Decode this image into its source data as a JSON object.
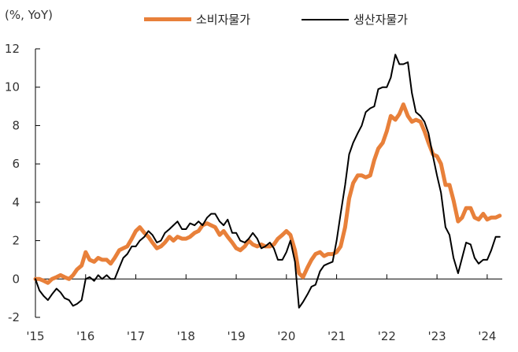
{
  "chart_data": {
    "type": "line",
    "unit_label": "(%, YoY)",
    "ylim": [
      -2,
      12
    ],
    "yticks": [
      -2,
      0,
      2,
      4,
      6,
      8,
      10,
      12
    ],
    "xlim": [
      2015.0,
      2024.3
    ],
    "xtick_labels": [
      "'15",
      "'16",
      "'17",
      "'18",
      "'19",
      "'20",
      "'21",
      "'22",
      "'23",
      "'24"
    ],
    "grid": false,
    "legend_position": "top-center",
    "series": [
      {
        "name": "소비자물가",
        "color": "#E8803A",
        "x": [
          2015.0,
          2015.08,
          2015.17,
          2015.25,
          2015.33,
          2015.42,
          2015.5,
          2015.58,
          2015.67,
          2015.75,
          2015.83,
          2015.92,
          2016.0,
          2016.08,
          2016.17,
          2016.25,
          2016.33,
          2016.42,
          2016.5,
          2016.58,
          2016.67,
          2016.75,
          2016.83,
          2016.92,
          2017.0,
          2017.08,
          2017.17,
          2017.25,
          2017.33,
          2017.42,
          2017.5,
          2017.58,
          2017.67,
          2017.75,
          2017.83,
          2017.92,
          2018.0,
          2018.08,
          2018.17,
          2018.25,
          2018.33,
          2018.42,
          2018.5,
          2018.58,
          2018.67,
          2018.75,
          2018.83,
          2018.92,
          2019.0,
          2019.08,
          2019.17,
          2019.25,
          2019.33,
          2019.42,
          2019.5,
          2019.58,
          2019.67,
          2019.75,
          2019.83,
          2019.92,
          2020.0,
          2020.08,
          2020.17,
          2020.25,
          2020.33,
          2020.42,
          2020.5,
          2020.58,
          2020.67,
          2020.75,
          2020.83,
          2020.92,
          2021.0,
          2021.08,
          2021.17,
          2021.25,
          2021.33,
          2021.42,
          2021.5,
          2021.58,
          2021.67,
          2021.75,
          2021.83,
          2021.92,
          2022.0,
          2022.08,
          2022.17,
          2022.25,
          2022.33,
          2022.42,
          2022.5,
          2022.58,
          2022.67,
          2022.75,
          2022.83,
          2022.92,
          2023.0,
          2023.08,
          2023.17,
          2023.25,
          2023.33,
          2023.42,
          2023.5,
          2023.58,
          2023.67,
          2023.75,
          2023.83,
          2023.92,
          2024.0,
          2024.08,
          2024.17,
          2024.25
        ],
        "values": [
          0.0,
          0.0,
          -0.1,
          -0.2,
          0.0,
          0.1,
          0.2,
          0.1,
          0.0,
          0.2,
          0.5,
          0.7,
          1.4,
          1.0,
          0.9,
          1.1,
          1.0,
          1.0,
          0.8,
          1.1,
          1.5,
          1.6,
          1.7,
          2.1,
          2.5,
          2.7,
          2.4,
          2.2,
          1.9,
          1.6,
          1.7,
          1.9,
          2.2,
          2.0,
          2.2,
          2.1,
          2.1,
          2.2,
          2.4,
          2.5,
          2.8,
          2.9,
          2.8,
          2.7,
          2.3,
          2.5,
          2.2,
          1.9,
          1.6,
          1.5,
          1.7,
          2.0,
          1.8,
          1.7,
          1.8,
          1.7,
          1.7,
          1.8,
          2.1,
          2.3,
          2.5,
          2.3,
          1.5,
          0.3,
          0.1,
          0.6,
          1.0,
          1.3,
          1.4,
          1.2,
          1.3,
          1.3,
          1.4,
          1.7,
          2.7,
          4.2,
          5.0,
          5.4,
          5.4,
          5.3,
          5.4,
          6.2,
          6.8,
          7.1,
          7.7,
          8.5,
          8.3,
          8.6,
          9.1,
          8.5,
          8.2,
          8.3,
          8.2,
          7.7,
          7.1,
          6.5,
          6.4,
          6.0,
          4.9,
          4.9,
          4.1,
          3.0,
          3.2,
          3.7,
          3.7,
          3.2,
          3.1,
          3.4,
          3.1,
          3.2,
          3.2,
          3.3
        ]
      },
      {
        "name": "생산자물가",
        "color": "#000000",
        "x": [
          2015.0,
          2015.08,
          2015.17,
          2015.25,
          2015.33,
          2015.42,
          2015.5,
          2015.58,
          2015.67,
          2015.75,
          2015.83,
          2015.92,
          2016.0,
          2016.08,
          2016.17,
          2016.25,
          2016.33,
          2016.42,
          2016.5,
          2016.58,
          2016.67,
          2016.75,
          2016.83,
          2016.92,
          2017.0,
          2017.08,
          2017.17,
          2017.25,
          2017.33,
          2017.42,
          2017.5,
          2017.58,
          2017.67,
          2017.75,
          2017.83,
          2017.92,
          2018.0,
          2018.08,
          2018.17,
          2018.25,
          2018.33,
          2018.42,
          2018.5,
          2018.58,
          2018.67,
          2018.75,
          2018.83,
          2018.92,
          2019.0,
          2019.08,
          2019.17,
          2019.25,
          2019.33,
          2019.42,
          2019.5,
          2019.58,
          2019.67,
          2019.75,
          2019.83,
          2019.92,
          2020.0,
          2020.08,
          2020.17,
          2020.25,
          2020.33,
          2020.42,
          2020.5,
          2020.58,
          2020.67,
          2020.75,
          2020.83,
          2020.92,
          2021.0,
          2021.08,
          2021.17,
          2021.25,
          2021.33,
          2021.42,
          2021.5,
          2021.58,
          2021.67,
          2021.75,
          2021.83,
          2021.92,
          2022.0,
          2022.08,
          2022.17,
          2022.25,
          2022.33,
          2022.42,
          2022.5,
          2022.58,
          2022.67,
          2022.75,
          2022.83,
          2022.92,
          2023.0,
          2023.08,
          2023.17,
          2023.25,
          2023.33,
          2023.42,
          2023.5,
          2023.58,
          2023.67,
          2023.75,
          2023.83,
          2023.92,
          2024.0,
          2024.08,
          2024.17,
          2024.25
        ],
        "values": [
          0.0,
          -0.6,
          -0.9,
          -1.1,
          -0.8,
          -0.5,
          -0.7,
          -1.0,
          -1.1,
          -1.4,
          -1.3,
          -1.1,
          0.0,
          0.1,
          -0.1,
          0.2,
          0.0,
          0.2,
          0.0,
          0.0,
          0.6,
          1.1,
          1.3,
          1.7,
          1.7,
          2.0,
          2.2,
          2.5,
          2.3,
          1.9,
          2.0,
          2.4,
          2.6,
          2.8,
          3.0,
          2.6,
          2.6,
          2.9,
          2.8,
          3.0,
          2.8,
          3.2,
          3.4,
          3.4,
          3.0,
          2.8,
          3.1,
          2.4,
          2.4,
          2.0,
          1.9,
          2.1,
          2.4,
          2.1,
          1.6,
          1.7,
          1.9,
          1.6,
          1.0,
          1.0,
          1.4,
          2.0,
          0.9,
          -1.5,
          -1.2,
          -0.8,
          -0.4,
          -0.3,
          0.4,
          0.7,
          0.8,
          0.9,
          2.0,
          3.4,
          4.9,
          6.5,
          7.1,
          7.6,
          8.0,
          8.7,
          8.9,
          9.0,
          9.9,
          10.0,
          10.0,
          10.5,
          11.7,
          11.2,
          11.2,
          11.3,
          9.7,
          8.7,
          8.5,
          8.2,
          7.6,
          6.4,
          5.4,
          4.5,
          2.7,
          2.3,
          1.1,
          0.3,
          1.1,
          1.9,
          1.8,
          1.1,
          0.8,
          1.0,
          1.0,
          1.5,
          2.2,
          2.2
        ]
      }
    ]
  }
}
